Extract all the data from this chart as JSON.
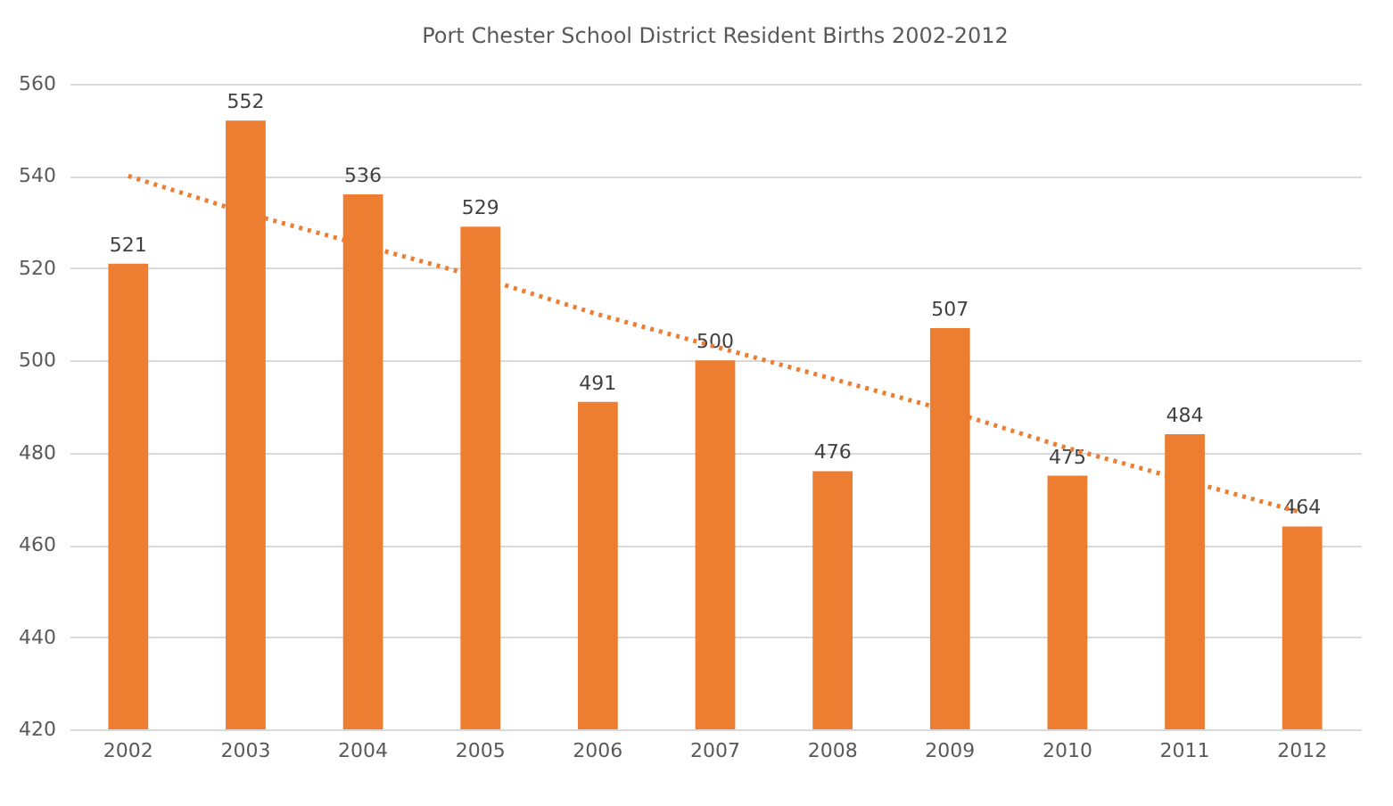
{
  "chart_data": {
    "type": "bar",
    "title": "Port Chester School District Resident Births 2002-2012",
    "categories": [
      "2002",
      "2003",
      "2004",
      "2005",
      "2006",
      "2007",
      "2008",
      "2009",
      "2010",
      "2011",
      "2012"
    ],
    "series": [
      {
        "color": "#ed7d31",
        "values": [
          521,
          552,
          536,
          529,
          491,
          500,
          476,
          507,
          475,
          484,
          464
        ],
        "value_labels": [
          "521",
          "552",
          "536",
          "529",
          "491",
          "500",
          "476",
          "507",
          "475",
          "484",
          "464"
        ]
      },
      {
        "type": "line",
        "color": "#ed7d31",
        "values": [
          540,
          532,
          525,
          518,
          510,
          503,
          496,
          489,
          481,
          474,
          467
        ],
        "line_style": "dotted"
      }
    ],
    "ylim": [
      420,
      560
    ],
    "yticks": [
      420,
      440,
      460,
      480,
      500,
      520,
      540,
      560
    ],
    "grid": "y"
  }
}
